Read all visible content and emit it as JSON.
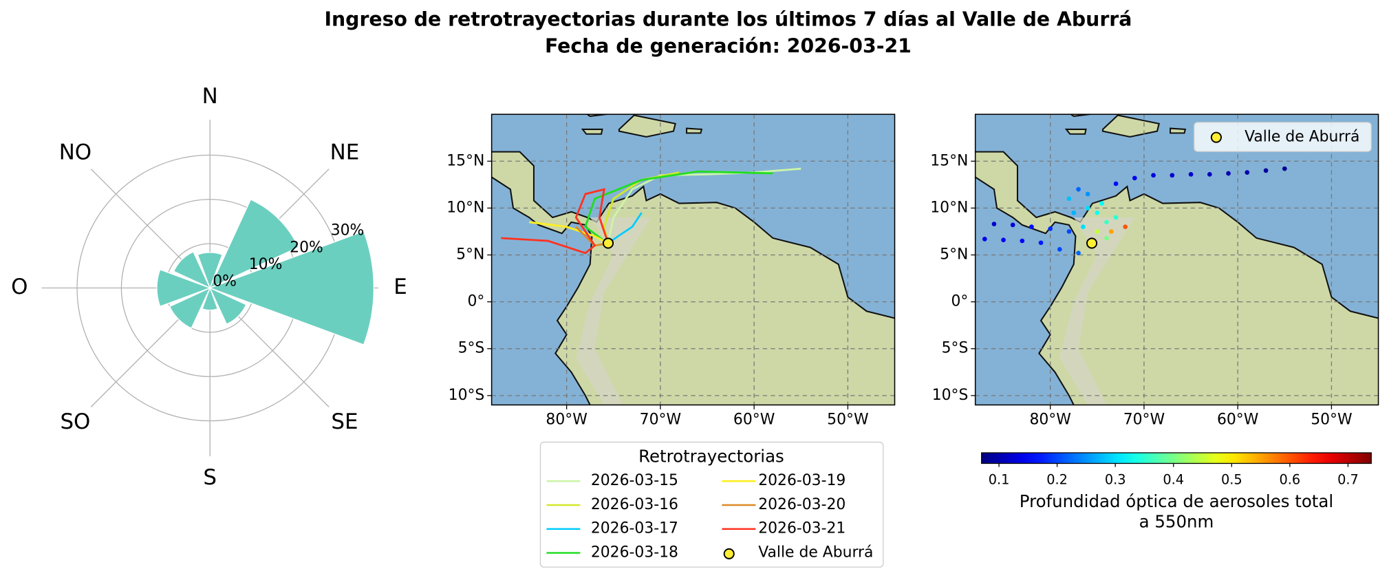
{
  "title": "Ingreso de retrotrayectorias durante los últimos 7 días al Valle de Aburrá",
  "subtitle": "Fecha de generación: 2026-03-21",
  "chart_data": [
    {
      "type": "polar_bar",
      "categories": [
        "N",
        "NE",
        "E",
        "SE",
        "S",
        "SO",
        "O",
        "NO"
      ],
      "values": [
        8,
        22,
        37,
        9,
        5,
        10,
        12,
        9
      ],
      "color": "#6bcfbf",
      "rlim": [
        0,
        38
      ],
      "rticks": [
        {
          "value": 0,
          "label": "0%"
        },
        {
          "value": 10,
          "label": "10%"
        },
        {
          "value": 20,
          "label": "20%"
        },
        {
          "value": 30,
          "label": "30%"
        }
      ],
      "grid": true
    },
    {
      "type": "map_lines",
      "xlim": [
        -88,
        -45
      ],
      "ylim": [
        -11,
        20
      ],
      "xticks": [
        {
          "value": -80,
          "label": "80°W"
        },
        {
          "value": -70,
          "label": "70°W"
        },
        {
          "value": -60,
          "label": "60°W"
        },
        {
          "value": -50,
          "label": "50°W"
        }
      ],
      "yticks": [
        {
          "value": 15,
          "label": "15°N"
        },
        {
          "value": 10,
          "label": "10°N"
        },
        {
          "value": 5,
          "label": "5°N"
        },
        {
          "value": 0,
          "label": "0°"
        },
        {
          "value": -5,
          "label": "5°S"
        },
        {
          "value": -10,
          "label": "10°S"
        }
      ],
      "grid": true,
      "legend_title": "Retrotrayectorias",
      "series": [
        {
          "name": "2026-03-15",
          "color": "#ccf5a8",
          "x": [
            -55,
            -60,
            -65,
            -70,
            -73,
            -75,
            -75.57
          ],
          "values": [
            14.2,
            13.8,
            13.6,
            13.5,
            12,
            9,
            6.25
          ]
        },
        {
          "name": "2026-03-16",
          "color": "#d4e82a",
          "x": [
            -68,
            -72,
            -75,
            -76,
            -75.57
          ],
          "values": [
            13.8,
            13,
            11,
            8,
            6.25
          ]
        },
        {
          "name": "2026-03-17",
          "color": "#00ccff",
          "x": [
            -72,
            -73,
            -74.5,
            -75.57
          ],
          "values": [
            9.5,
            8,
            7,
            6.25
          ]
        },
        {
          "name": "2026-03-18",
          "color": "#22dd22",
          "x": [
            -58,
            -66,
            -72,
            -77,
            -78,
            -76,
            -75.57
          ],
          "values": [
            13.7,
            13.9,
            13,
            11,
            8,
            6.5,
            6.25
          ]
        },
        {
          "name": "2026-03-19",
          "color": "#ffee22",
          "x": [
            -84,
            -80,
            -77,
            -75.57
          ],
          "values": [
            8.5,
            8,
            7,
            6.25
          ]
        },
        {
          "name": "2026-03-20",
          "color": "#dd8a22",
          "x": [
            -79,
            -77,
            -75.57
          ],
          "values": [
            8,
            6,
            6.25
          ]
        },
        {
          "name": "2026-03-21",
          "color": "#ff3322",
          "x": [
            -87,
            -82,
            -78,
            -77,
            -79,
            -78,
            -76,
            -76.5,
            -75.57
          ],
          "values": [
            6.8,
            6.5,
            5.2,
            6,
            9,
            11.5,
            12,
            9,
            6.25
          ]
        }
      ],
      "marker": {
        "name": "Valle de Aburrá",
        "x": -75.57,
        "y": 6.25,
        "color": "#ffee33"
      }
    },
    {
      "type": "map_scatter",
      "xlim": [
        -88,
        -45
      ],
      "ylim": [
        -11,
        20
      ],
      "xticks": [
        {
          "value": -80,
          "label": "80°W"
        },
        {
          "value": -70,
          "label": "70°W"
        },
        {
          "value": -60,
          "label": "60°W"
        },
        {
          "value": -50,
          "label": "50°W"
        }
      ],
      "yticks": [
        {
          "value": 15,
          "label": "15°N"
        },
        {
          "value": 10,
          "label": "10°N"
        },
        {
          "value": 5,
          "label": "5°N"
        },
        {
          "value": 0,
          "label": "0°"
        },
        {
          "value": -5,
          "label": "5°S"
        },
        {
          "value": -10,
          "label": "10°S"
        }
      ],
      "grid": true,
      "x": [
        -55,
        -57,
        -59,
        -61,
        -63,
        -65,
        -67,
        -69,
        -71,
        -73,
        -87,
        -85,
        -83,
        -81,
        -79,
        -77,
        -86,
        -84,
        -82,
        -80,
        -78,
        -78,
        -77,
        -76,
        -75,
        -74,
        -73,
        -76.5,
        -77.5,
        -74.5,
        -73.5,
        -75,
        -76,
        -72,
        -74
      ],
      "y": [
        14.2,
        14.0,
        13.8,
        13.7,
        13.6,
        13.6,
        13.5,
        13.5,
        13.2,
        12.6,
        6.7,
        6.6,
        6.5,
        6.3,
        5.6,
        5.2,
        8.3,
        8.2,
        8.0,
        7.8,
        7.5,
        11,
        12,
        10,
        9.5,
        8.5,
        9,
        8,
        9.5,
        10.5,
        7.5,
        7.5,
        11.5,
        8,
        6.8
      ],
      "values": [
        0.08,
        0.09,
        0.1,
        0.1,
        0.11,
        0.12,
        0.12,
        0.13,
        0.14,
        0.16,
        0.14,
        0.15,
        0.15,
        0.17,
        0.2,
        0.22,
        0.12,
        0.13,
        0.16,
        0.18,
        0.2,
        0.28,
        0.22,
        0.3,
        0.33,
        0.36,
        0.35,
        0.3,
        0.27,
        0.32,
        0.55,
        0.45,
        0.25,
        0.6,
        0.4
      ],
      "colormap": "jet",
      "clim": [
        0.07,
        0.74
      ],
      "cticks": [
        0.1,
        0.2,
        0.3,
        0.4,
        0.5,
        0.6,
        0.7
      ],
      "colorbar_label": [
        "Profundidad óptica de aerosoles total",
        "a 550nm"
      ],
      "marker": {
        "name": "Valle de Aburrá",
        "x": -75.57,
        "y": 6.25,
        "color": "#ffee33"
      },
      "legend": "upper right"
    }
  ]
}
